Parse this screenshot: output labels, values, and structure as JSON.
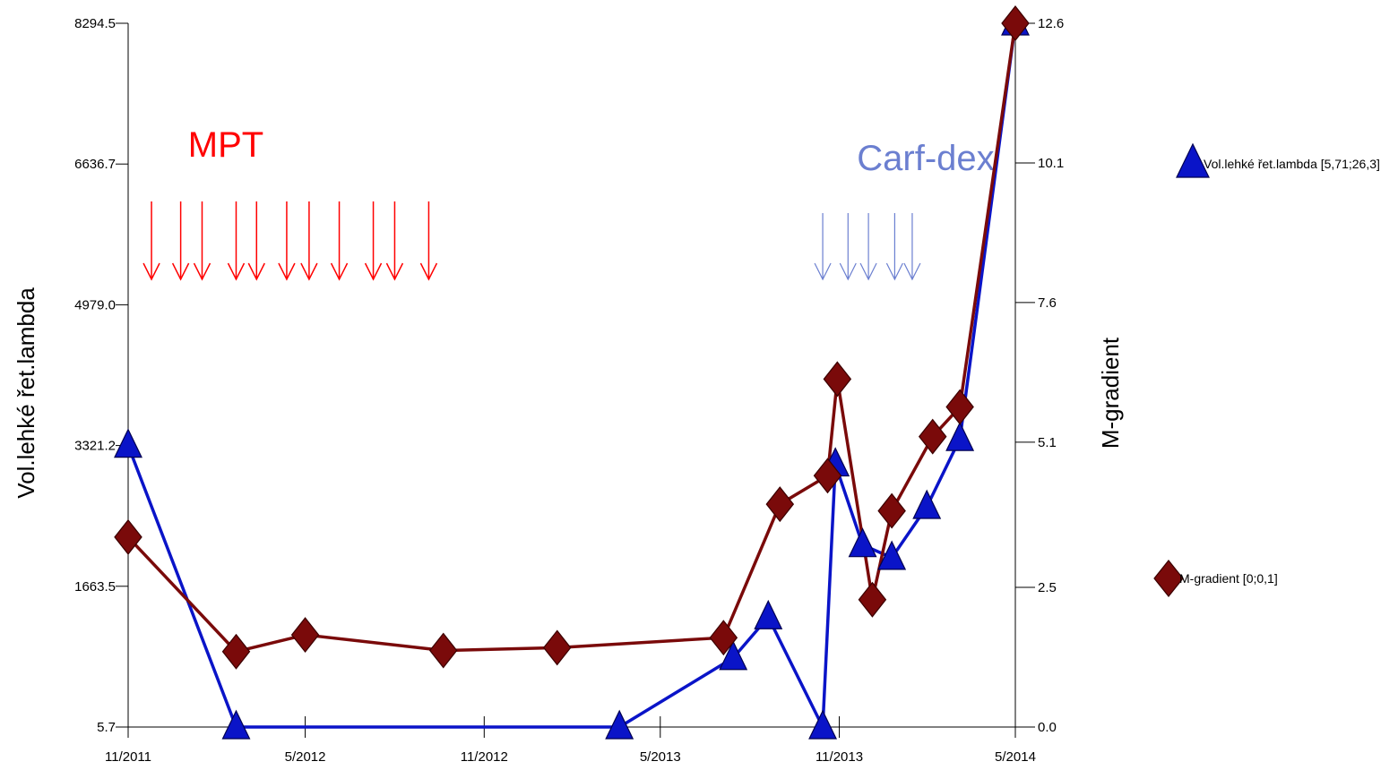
{
  "chart_data": {
    "type": "line",
    "x_ticks": [
      "11/2011",
      "5/2012",
      "11/2012",
      "5/2013",
      "11/2013",
      "5/2014"
    ],
    "x_range": [
      "2011-11",
      "2014-05"
    ],
    "y_left": {
      "label": "Vol.lehké řet.lambda",
      "ticks": [
        "8294.5",
        "6636.7",
        "4979.0",
        "3321.2",
        "1663.5",
        "5.7"
      ],
      "range": [
        5.7,
        8294.5
      ]
    },
    "y_right": {
      "label": "M-gradient",
      "ticks": [
        "12.6",
        "10.1",
        "7.6",
        "5.1",
        "2.5",
        "0.0"
      ],
      "range": [
        0.0,
        12.6
      ]
    },
    "grid": false,
    "legend_position": "right",
    "series": [
      {
        "name": "Vol.lehké řet.lambda [5,71;26,3]",
        "axis": "left",
        "color": "#0a14c8",
        "marker": "triangle",
        "points": [
          {
            "x": "2011-11-01",
            "y": 3321.2
          },
          {
            "x": "2012-02-20",
            "y": 5.7
          },
          {
            "x": "2013-03-20",
            "y": 5.7
          },
          {
            "x": "2013-07-15",
            "y": 820
          },
          {
            "x": "2013-08-20",
            "y": 1300
          },
          {
            "x": "2013-10-15",
            "y": 5.7
          },
          {
            "x": "2013-10-28",
            "y": 3100
          },
          {
            "x": "2013-11-25",
            "y": 2150
          },
          {
            "x": "2013-12-25",
            "y": 2000
          },
          {
            "x": "2014-01-30",
            "y": 2600
          },
          {
            "x": "2014-03-05",
            "y": 3400
          },
          {
            "x": "2014-05-01",
            "y": 8294.5
          }
        ]
      },
      {
        "name": "M-gradient [0;0,1]",
        "axis": "right",
        "color": "#7a0a0a",
        "marker": "diamond",
        "points": [
          {
            "x": "2011-11-01",
            "y": 3.4
          },
          {
            "x": "2012-02-20",
            "y": 1.35
          },
          {
            "x": "2012-05-01",
            "y": 1.65
          },
          {
            "x": "2012-09-20",
            "y": 1.37
          },
          {
            "x": "2013-01-15",
            "y": 1.42
          },
          {
            "x": "2013-07-05",
            "y": 1.6
          },
          {
            "x": "2013-09-01",
            "y": 3.99
          },
          {
            "x": "2013-10-20",
            "y": 4.5
          },
          {
            "x": "2013-10-30",
            "y": 6.23
          },
          {
            "x": "2013-12-05",
            "y": 2.28
          },
          {
            "x": "2013-12-25",
            "y": 3.87
          },
          {
            "x": "2014-02-05",
            "y": 5.2
          },
          {
            "x": "2014-03-05",
            "y": 5.73
          },
          {
            "x": "2014-05-01",
            "y": 12.6
          }
        ]
      }
    ],
    "annotations": [
      {
        "text": "MPT",
        "color": "#ff0000",
        "arrow_dates": [
          "2011-11-25",
          "2011-12-25",
          "2012-01-16",
          "2012-02-20",
          "2012-03-12",
          "2012-04-12",
          "2012-05-05",
          "2012-06-05",
          "2012-07-10",
          "2012-08-01",
          "2012-09-05"
        ]
      },
      {
        "text": "Carf-dex",
        "color": "#6b7fd0",
        "arrow_dates": [
          "2013-10-15",
          "2013-11-10",
          "2013-12-01",
          "2013-12-28",
          "2014-01-15"
        ]
      }
    ]
  }
}
